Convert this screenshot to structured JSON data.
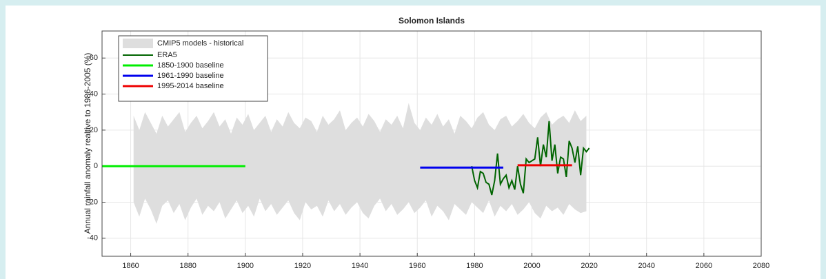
{
  "chart_data": {
    "type": "line",
    "title": "Solomon Islands",
    "ylabel": "Annual rainfall anomaly realtive to 1986-2005 (%)",
    "xlim": [
      1850,
      2080
    ],
    "ylim": [
      -50,
      75
    ],
    "xticks": [
      1860,
      1880,
      1900,
      1920,
      1940,
      1960,
      1980,
      2000,
      2020,
      2040,
      2060,
      2080
    ],
    "yticks": [
      -40,
      -20,
      0,
      20,
      40,
      60
    ],
    "grid": true,
    "legend": "upper left",
    "band": {
      "name": "CMIP5 models - historical",
      "color": "#dedede",
      "x": [
        1861,
        1863,
        1865,
        1867,
        1869,
        1871,
        1873,
        1875,
        1877,
        1879,
        1881,
        1883,
        1885,
        1887,
        1889,
        1891,
        1893,
        1895,
        1897,
        1899,
        1901,
        1903,
        1905,
        1907,
        1909,
        1911,
        1913,
        1915,
        1917,
        1919,
        1921,
        1923,
        1925,
        1927,
        1929,
        1931,
        1933,
        1935,
        1937,
        1939,
        1941,
        1943,
        1945,
        1947,
        1949,
        1951,
        1953,
        1955,
        1957,
        1959,
        1961,
        1963,
        1965,
        1967,
        1969,
        1971,
        1973,
        1975,
        1977,
        1979,
        1981,
        1983,
        1985,
        1987,
        1989,
        1991,
        1993,
        1995,
        1997,
        1999,
        2001,
        2003,
        2005,
        2007,
        2009,
        2011,
        2013,
        2015,
        2017,
        2019
      ],
      "upper": [
        28,
        20,
        30,
        24,
        18,
        28,
        22,
        26,
        30,
        19,
        24,
        28,
        21,
        25,
        30,
        22,
        26,
        18,
        27,
        23,
        29,
        20,
        24,
        28,
        19,
        26,
        22,
        30,
        24,
        21,
        27,
        25,
        19,
        28,
        23,
        26,
        31,
        20,
        24,
        27,
        22,
        29,
        25,
        19,
        26,
        23,
        28,
        21,
        35,
        24,
        20,
        27,
        23,
        29,
        22,
        26,
        18,
        28,
        25,
        21,
        27,
        30,
        23,
        20,
        26,
        28,
        22,
        25,
        29,
        24,
        21,
        27,
        30,
        23,
        26,
        28,
        24,
        31,
        25,
        28
      ],
      "lower": [
        -20,
        -28,
        -18,
        -24,
        -32,
        -22,
        -19,
        -26,
        -21,
        -30,
        -23,
        -18,
        -27,
        -22,
        -25,
        -20,
        -29,
        -24,
        -19,
        -26,
        -22,
        -28,
        -18,
        -25,
        -21,
        -27,
        -23,
        -19,
        -26,
        -30,
        -20,
        -24,
        -22,
        -28,
        -19,
        -25,
        -21,
        -27,
        -23,
        -20,
        -26,
        -29,
        -22,
        -18,
        -25,
        -21,
        -27,
        -24,
        -20,
        -26,
        -23,
        -19,
        -28,
        -22,
        -25,
        -30,
        -21,
        -24,
        -27,
        -20,
        -23,
        -26,
        -19,
        -28,
        -22,
        -25,
        -21,
        -27,
        -24,
        -20,
        -26,
        -29,
        -22,
        -25,
        -23,
        -27,
        -21,
        -24,
        -26,
        -25
      ]
    },
    "series": [
      {
        "name": "ERA5",
        "color": "#006400",
        "x": [
          1979,
          1980,
          1981,
          1982,
          1983,
          1984,
          1985,
          1986,
          1987,
          1988,
          1989,
          1990,
          1991,
          1992,
          1993,
          1994,
          1995,
          1996,
          1997,
          1998,
          1999,
          2000,
          2001,
          2002,
          2003,
          2004,
          2005,
          2006,
          2007,
          2008,
          2009,
          2010,
          2011,
          2012,
          2013,
          2014,
          2015,
          2016,
          2017,
          2018,
          2019,
          2020
        ],
        "values": [
          0,
          -8,
          -12,
          -3,
          -4,
          -9,
          -10,
          -16,
          -8,
          7,
          -10,
          -7,
          -5,
          -12,
          -8,
          -13,
          0,
          -10,
          -15,
          4,
          2,
          3,
          4,
          16,
          0,
          12,
          5,
          25,
          3,
          12,
          -4,
          5,
          4,
          -6,
          14,
          10,
          2,
          11,
          -5,
          10,
          8,
          10
        ]
      },
      {
        "name": "1850-1900 baseline",
        "color": "#00ee00",
        "x": [
          1850,
          1900
        ],
        "values": [
          0,
          0
        ]
      },
      {
        "name": "1961-1990 baseline",
        "color": "#0000ee",
        "x": [
          1961,
          1990
        ],
        "values": [
          -0.8,
          -0.8
        ]
      },
      {
        "name": "1995-2014 baseline",
        "color": "#ee0000",
        "x": [
          1995,
          2014
        ],
        "values": [
          0.5,
          0.5
        ]
      }
    ]
  }
}
